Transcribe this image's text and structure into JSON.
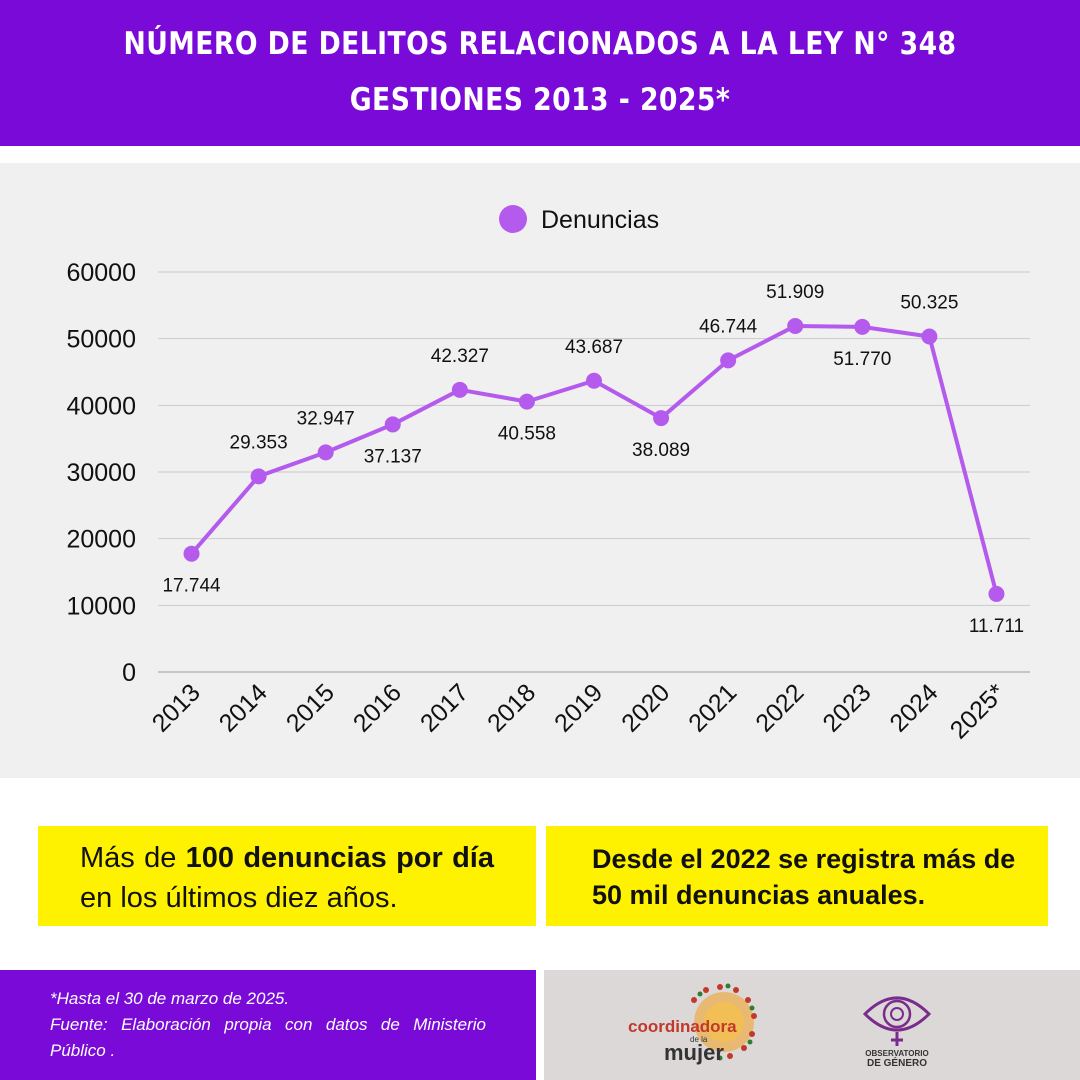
{
  "header": {
    "title_line1": "NÚMERO DE DELITOS RELACIONADOS A LA LEY N° 348",
    "title_line2": "GESTIONES 2013 - 2025*"
  },
  "chart_data": {
    "type": "line",
    "categories": [
      "2013",
      "2014",
      "2015",
      "2016",
      "2017",
      "2018",
      "2019",
      "2020",
      "2021",
      "2022",
      "2023",
      "2024",
      "2025*"
    ],
    "series": [
      {
        "name": "Denuncias",
        "color": "#b45bed",
        "values": [
          17744,
          29353,
          32947,
          37137,
          42327,
          40558,
          43687,
          38089,
          46744,
          51909,
          51770,
          50325,
          11711
        ],
        "labels": [
          "17.744",
          "29.353",
          "32.947",
          "37.137",
          "42.327",
          "40.558",
          "43.687",
          "38.089",
          "46.744",
          "51.909",
          "51.770",
          "50.325",
          "11.711"
        ],
        "label_positions": [
          "below",
          "above",
          "above",
          "below",
          "above",
          "below",
          "above",
          "below",
          "above",
          "above",
          "below",
          "above",
          "below"
        ]
      }
    ],
    "ylim": [
      0,
      60000
    ],
    "yticks": [
      "0",
      "10000",
      "20000",
      "30000",
      "40000",
      "50000",
      "60000"
    ],
    "grid": true,
    "legend": "top-center"
  },
  "callouts": {
    "left": {
      "t1": "Más de ",
      "b1": "100 denuncias por día",
      "t2": " en los últimos diez años."
    },
    "right": "Desde el 2022 se registra más de 50 mil denuncias anuales."
  },
  "footer": {
    "note": "*Hasta el 30 de marzo de 2025.",
    "source": "Fuente: Elaboración propia con datos de Ministerio Público .",
    "logo1_text1": "coordinadora",
    "logo1_text2": "de la",
    "logo1_text3": "mujer",
    "logo2_text1": "OBSERVATORIO",
    "logo2_text2": "DE GÉNERO",
    "colors": {
      "purple": "#7a0ad8",
      "yellow": "#fff200",
      "logo_orange": "#f0a020"
    }
  }
}
